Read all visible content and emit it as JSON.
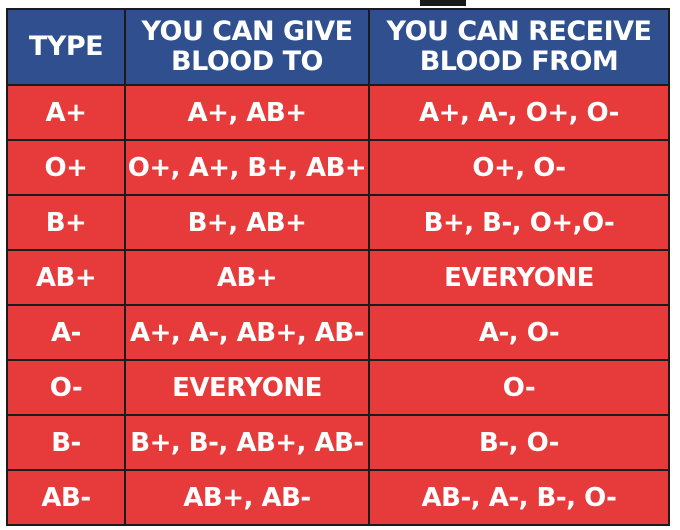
{
  "headers": {
    "type": "TYPE",
    "give": [
      "YOU CAN GIVE",
      "BLOOD TO"
    ],
    "receive": [
      "YOU CAN RECEIVE",
      "BLOOD FROM"
    ]
  },
  "rows": [
    {
      "type": "A+",
      "give": "A+, AB+",
      "receive": "A+, A-, O+, O-"
    },
    {
      "type": "O+",
      "give": "O+, A+, B+, AB+",
      "receive": "O+, O-"
    },
    {
      "type": "B+",
      "give": "B+, AB+",
      "receive": "B+, B-, O+,O-"
    },
    {
      "type": "AB+",
      "give": "AB+",
      "receive": "EVERYONE"
    },
    {
      "type": "A-",
      "give": "A+, A-, AB+, AB-",
      "receive": "A-, O-"
    },
    {
      "type": "O-",
      "give": "EVERYONE",
      "receive": "O-"
    },
    {
      "type": "B-",
      "give": "B+, B-, AB+, AB-",
      "receive": "B-, O-"
    },
    {
      "type": "AB-",
      "give": "AB+, AB-",
      "receive": "AB-, A-, B-, O-"
    }
  ],
  "colors": {
    "header_bg": "#2f4f8e",
    "cell_bg": "#e73a3a",
    "border": "#1b1b1b",
    "text": "#ffffff"
  }
}
